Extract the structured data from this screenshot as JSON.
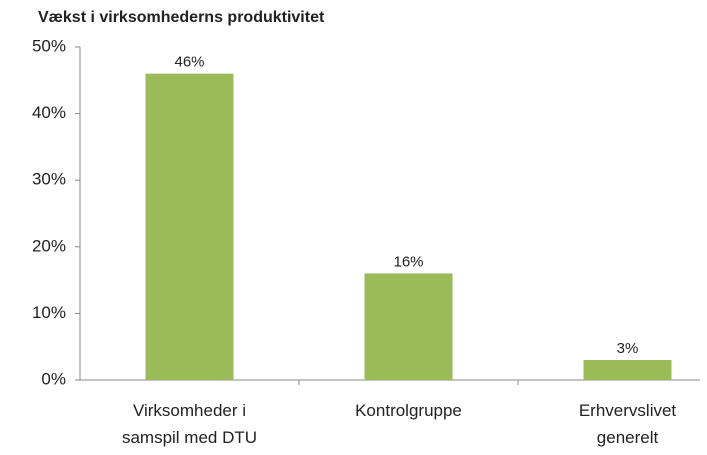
{
  "chart_data": {
    "type": "bar",
    "title": "Vækst i virksomhederns produktivitet",
    "categories": [
      "Virksomheder i\nsamspil med DTU",
      "Kontrolgruppe",
      "Erhvervslivet\ngenerelt"
    ],
    "values": [
      46,
      16,
      3
    ],
    "value_labels": [
      "46%",
      "16%",
      "3%"
    ],
    "color": "#9bbb59",
    "ylim": [
      0,
      50
    ],
    "yticks": [
      {
        "value": 0,
        "label": "0%"
      },
      {
        "value": 10,
        "label": "10%"
      },
      {
        "value": 20,
        "label": "20%"
      },
      {
        "value": 30,
        "label": "30%"
      },
      {
        "value": 40,
        "label": "40%"
      },
      {
        "value": 50,
        "label": "50%"
      }
    ],
    "grid": false
  }
}
